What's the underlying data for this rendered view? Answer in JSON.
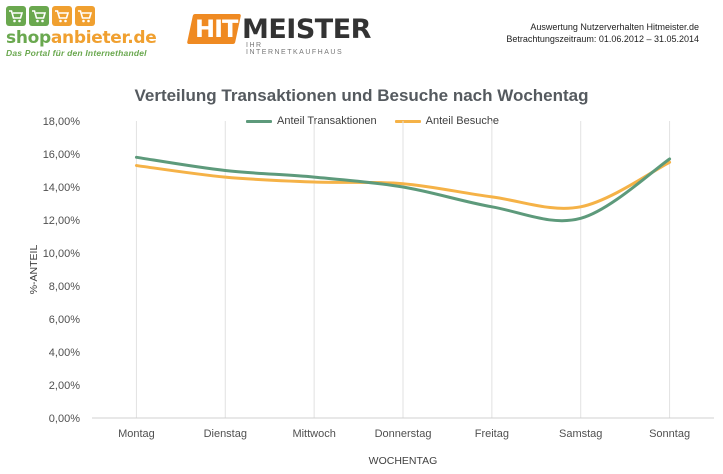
{
  "header": {
    "shop_logo": {
      "name": "shopanbieter.de",
      "name_part1": "shop",
      "name_part2": "anbieter.de",
      "tagline": "Das Portal für den Internethandel"
    },
    "hit_logo": {
      "part1": "HIT",
      "part2": "MEISTER",
      "tagline": "IHR INTERNETKAUFHAUS"
    },
    "info_line1": "Auswertung Nutzerverhalten Hitmeister.de",
    "info_line2": "Betrachtungszeitraum: 01.06.2012 – 31.05.2014"
  },
  "colors": {
    "green": "#5d9a7b",
    "orange": "#f5b247",
    "logo_green": "#6aa84f",
    "logo_orange": "#f0a030",
    "hit_orange": "#ef8a22"
  },
  "chart_data": {
    "type": "line",
    "title": "Verteilung Transaktionen und Besuche nach Wochentag",
    "xlabel": "WOCHENTAG",
    "ylabel": "%-ANTEIL",
    "categories": [
      "Montag",
      "Dienstag",
      "Mittwoch",
      "Donnerstag",
      "Freitag",
      "Samstag",
      "Sonntag"
    ],
    "series": [
      {
        "name": "Anteil Transaktionen",
        "color": "#5d9a7b",
        "values": [
          15.8,
          15.0,
          14.6,
          14.0,
          12.8,
          12.1,
          15.7
        ]
      },
      {
        "name": "Anteil Besuche",
        "color": "#f5b247",
        "values": [
          15.3,
          14.6,
          14.3,
          14.2,
          13.4,
          12.8,
          15.5
        ]
      }
    ],
    "ylim": [
      0,
      18
    ],
    "yticks": [
      "0,00%",
      "2,00%",
      "4,00%",
      "6,00%",
      "8,00%",
      "10,00%",
      "12,00%",
      "14,00%",
      "16,00%",
      "18,00%"
    ],
    "grid": "vertical",
    "legend": "top-center",
    "smooth": true
  }
}
